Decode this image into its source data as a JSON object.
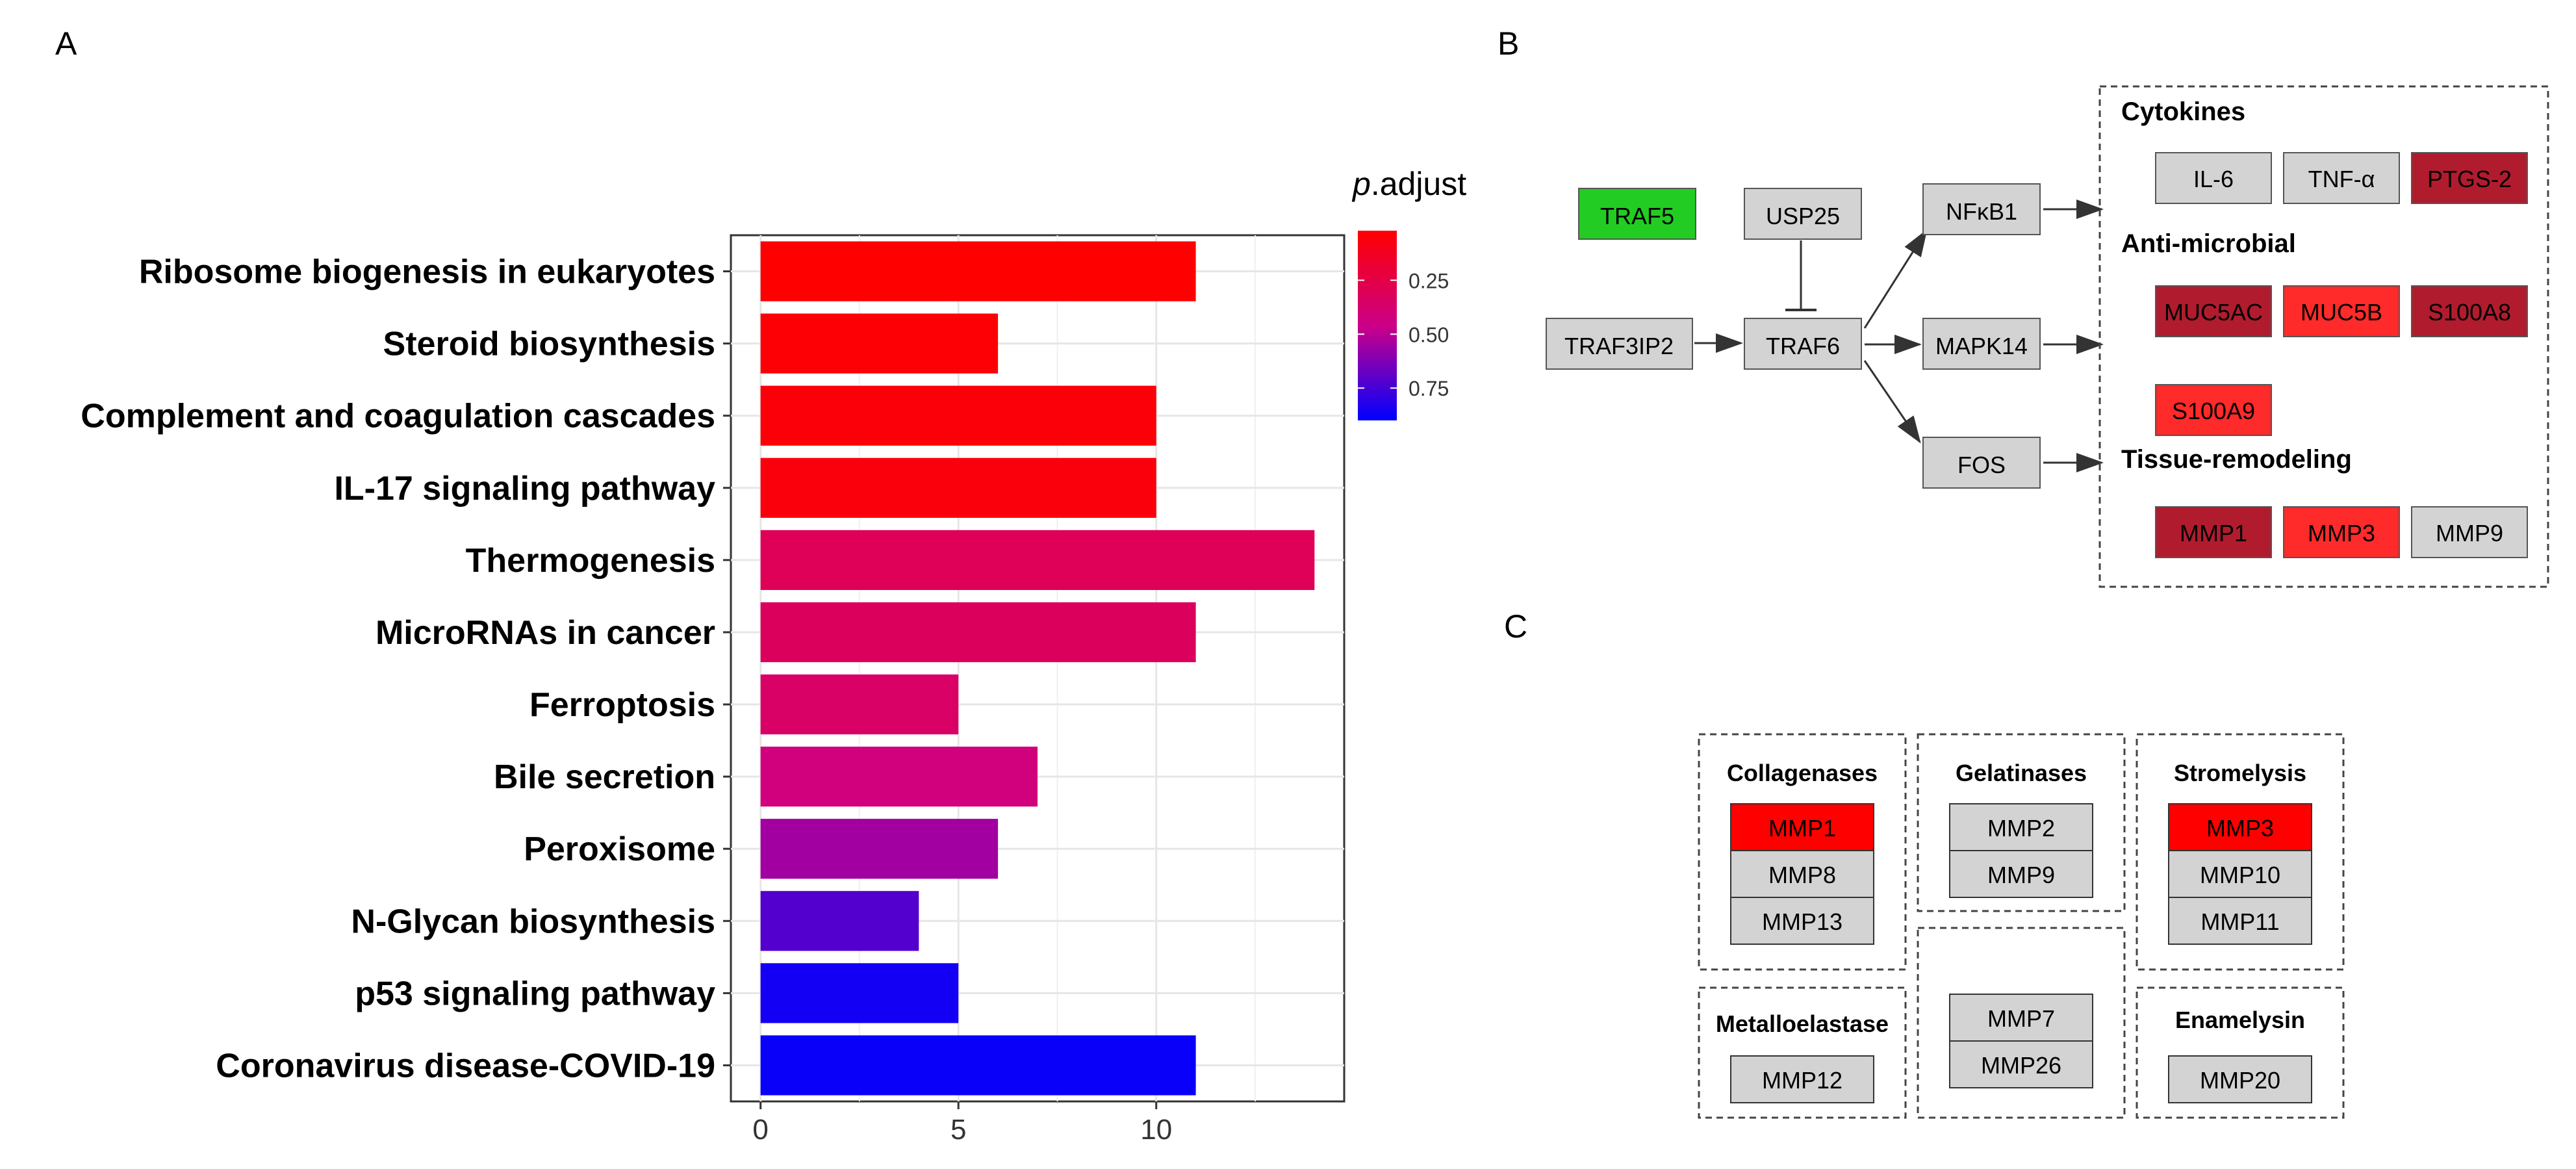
{
  "panels": {
    "a": "A",
    "b": "B",
    "c": "C"
  },
  "chart_data": {
    "type": "bar",
    "orientation": "horizontal",
    "categories": [
      "Ribosome biogenesis in eukaryotes",
      "Steroid biosynthesis",
      "Complement and coagulation cascades",
      "IL-17 signaling pathway",
      "Thermogenesis",
      "MicroRNAs in cancer",
      "Ferroptosis",
      "Bile secretion",
      "Peroxisome",
      "N-Glycan biosynthesis",
      "p53 signaling pathway",
      "Coronavirus disease-COVID-19"
    ],
    "values": [
      11,
      6,
      10,
      10,
      14,
      11,
      5,
      7,
      6,
      4,
      5,
      11
    ],
    "p_adjust": [
      0.02,
      0.04,
      0.05,
      0.06,
      0.3,
      0.32,
      0.35,
      0.42,
      0.55,
      0.72,
      0.86,
      0.88
    ],
    "xticks": [
      0,
      5,
      10
    ],
    "xlim": [
      -0.75,
      14.75
    ],
    "xlabel": "",
    "ylabel": "",
    "grid": true,
    "legend": {
      "title_italic": "p",
      "title_rest": ".adjust",
      "ticks": [
        "0.25",
        "0.50",
        "0.75"
      ],
      "tick_values": [
        0.25,
        0.5,
        0.75
      ],
      "range": [
        0.02,
        0.9
      ],
      "color_low": "#ff0000",
      "color_high": "#0000ff",
      "position": "right"
    }
  },
  "network": {
    "nodes": {
      "traf5": {
        "label": "TRAF5",
        "fill": "#22cc22"
      },
      "usp25": {
        "label": "USP25",
        "fill": "#d3d3d3"
      },
      "traf3ip2": {
        "label": "TRAF3IP2",
        "fill": "#d3d3d3"
      },
      "traf6": {
        "label": "TRAF6",
        "fill": "#d3d3d3"
      },
      "nfkb1": {
        "label": "NFκB1",
        "fill": "#d3d3d3"
      },
      "mapk14": {
        "label": "MAPK14",
        "fill": "#d3d3d3"
      },
      "fos": {
        "label": "FOS",
        "fill": "#d3d3d3"
      }
    },
    "groups": {
      "cytokines": {
        "title": "Cytokines",
        "genes": [
          {
            "label": "IL-6",
            "fill": "#d3d3d3"
          },
          {
            "label": "TNF-α",
            "fill": "#d3d3d3"
          },
          {
            "label": "PTGS-2",
            "fill": "#b01c2e"
          }
        ]
      },
      "antimicrobial": {
        "title": "Anti-microbial",
        "genes": [
          {
            "label": "MUC5AC",
            "fill": "#b01c2e"
          },
          {
            "label": "MUC5B",
            "fill": "#ff2a2a"
          },
          {
            "label": "S100A8",
            "fill": "#b01c2e"
          },
          {
            "label": "S100A9",
            "fill": "#ff2a2a"
          }
        ]
      },
      "tissue": {
        "title": "Tissue-remodeling",
        "genes": [
          {
            "label": "MMP1",
            "fill": "#b01c2e"
          },
          {
            "label": "MMP3",
            "fill": "#ff2a2a"
          },
          {
            "label": "MMP9",
            "fill": "#d3d3d3"
          }
        ]
      }
    }
  },
  "mmp_families": {
    "collagenases": {
      "title": "Collagenases",
      "genes": [
        {
          "label": "MMP1",
          "fill": "#ff0000"
        },
        {
          "label": "MMP8",
          "fill": "#d3d3d3"
        },
        {
          "label": "MMP13",
          "fill": "#d3d3d3"
        }
      ]
    },
    "gelatinases": {
      "title": "Gelatinases",
      "genes": [
        {
          "label": "MMP2",
          "fill": "#d3d3d3"
        },
        {
          "label": "MMP9",
          "fill": "#d3d3d3"
        }
      ]
    },
    "stromelysis": {
      "title": "Stromelysis",
      "genes": [
        {
          "label": "MMP3",
          "fill": "#ff0000"
        },
        {
          "label": "MMP10",
          "fill": "#d3d3d3"
        },
        {
          "label": "MMP11",
          "fill": "#d3d3d3"
        }
      ]
    },
    "metalloelastase": {
      "title": "Metalloelastase",
      "genes": [
        {
          "label": "MMP12",
          "fill": "#d3d3d3"
        }
      ]
    },
    "other": {
      "title": "",
      "genes": [
        {
          "label": "MMP7",
          "fill": "#d3d3d3"
        },
        {
          "label": "MMP26",
          "fill": "#d3d3d3"
        }
      ]
    },
    "enamelysin": {
      "title": "Enamelysin",
      "genes": [
        {
          "label": "MMP20",
          "fill": "#d3d3d3"
        }
      ]
    }
  }
}
